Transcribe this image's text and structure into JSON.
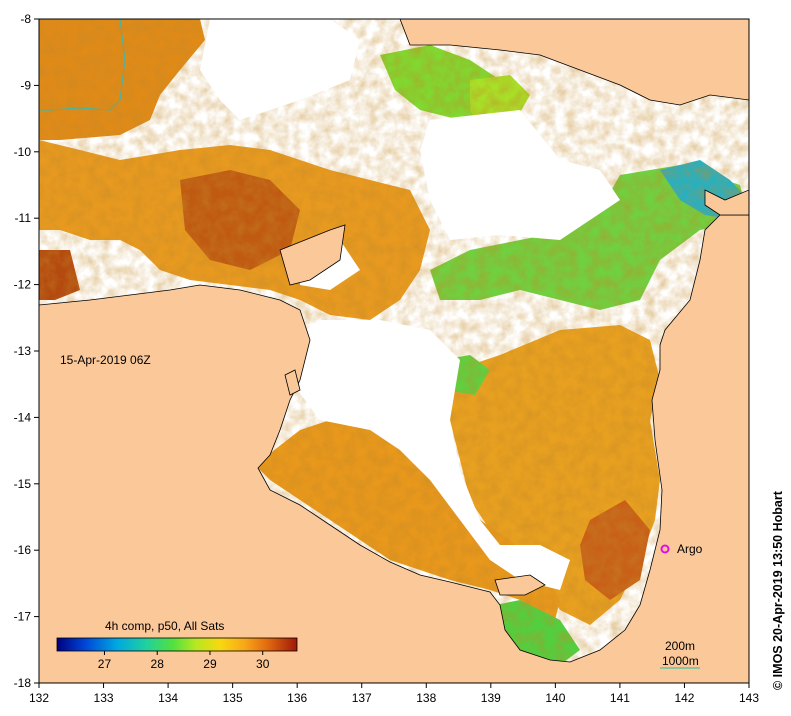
{
  "map": {
    "timestamp_label": "15-Apr-2019 06Z",
    "colorbar_title": "4h comp, p50, All Sats",
    "colorbar_ticks": [
      "27",
      "28",
      "29",
      "30"
    ],
    "contour_legend": {
      "line1": "200m",
      "line2": "1000m"
    },
    "argo_label": "Argo",
    "credit": "© IMOS 20-Apr-2019 13:50 Hobart",
    "x_ticks": [
      "132",
      "133",
      "134",
      "135",
      "136",
      "137",
      "138",
      "139",
      "140",
      "141",
      "142",
      "143"
    ],
    "y_ticks": [
      "-8",
      "-9",
      "-10",
      "-11",
      "-12",
      "-13",
      "-14",
      "-15",
      "-16",
      "-17",
      "-18"
    ],
    "colors": {
      "land": "#fbc89a",
      "no_data": "#ffffff",
      "sst_warm": "#e08a14",
      "sst_hot": "#b8400e",
      "sst_mid": "#f0b020",
      "sst_cool": "#55d040",
      "sst_cold": "#20a8c8",
      "argo_marker": "#e010e0",
      "contour_200m": "#28a8a8",
      "contour_1000m": "#20c0a0"
    },
    "colormap": [
      "#000088",
      "#0040d8",
      "#00a8e0",
      "#20d0a0",
      "#60e040",
      "#c8e820",
      "#f8d010",
      "#f8a010",
      "#e06010",
      "#a82008"
    ]
  }
}
